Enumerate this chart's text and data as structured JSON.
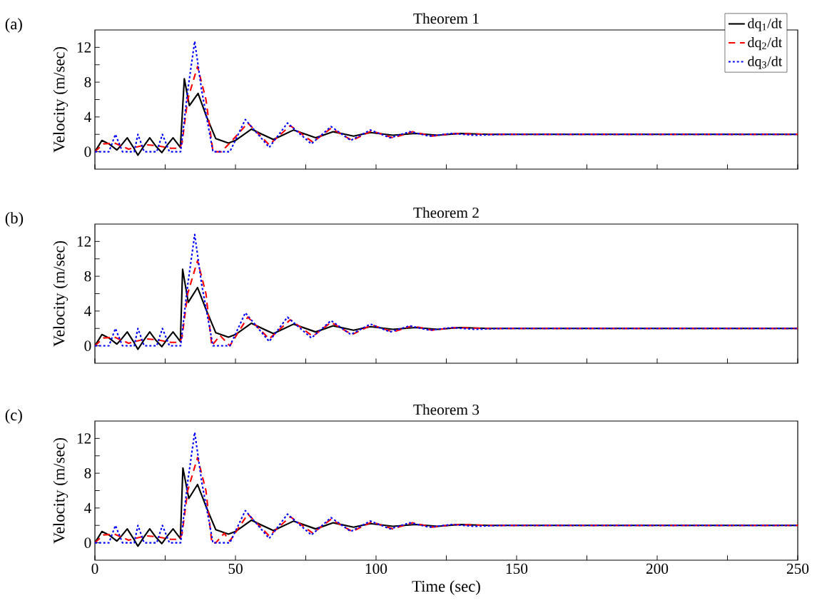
{
  "chart_data": [
    {
      "type": "line",
      "title": "Theorem 1",
      "ylabel": "Velocity (m/sec)",
      "annotations": [
        "(a)"
      ],
      "xlim": [
        0,
        250
      ],
      "ylim": [
        -2,
        14
      ],
      "xticks": [
        0,
        {
          "value": 25,
          "label": null
        },
        50,
        {
          "value": 75,
          "label": null
        },
        100,
        {
          "value": 125,
          "label": null
        },
        150,
        {
          "value": 175,
          "label": null
        },
        200,
        {
          "value": 225,
          "label": null
        },
        250
      ],
      "yticks": [
        0,
        {
          "value": 2,
          "label": null
        },
        4,
        {
          "value": 6,
          "label": null
        },
        8,
        {
          "value": 10,
          "label": null
        },
        12
      ],
      "tick_labels": "y",
      "legend": "top right",
      "grid": false,
      "series": [
        {
          "name": "dq$_{1}$/dt",
          "color": "#000000",
          "line_style": "solid",
          "x": [
            0,
            2.5,
            5,
            7.8,
            9.5,
            11.5,
            13.5,
            15.3,
            17.5,
            19.5,
            21.8,
            23.8,
            25.8,
            27.8,
            30.4,
            31.8,
            33.6,
            36.7,
            39.5,
            43,
            47.5,
            50,
            55.7,
            59.5,
            63.5,
            70.7,
            78.5,
            84.8,
            92,
            98,
            106,
            114,
            122,
            130,
            140,
            160,
            200,
            250
          ],
          "values": [
            0,
            1.3,
            0.9,
            0.2,
            0.8,
            1.6,
            0.6,
            -0.4,
            0.7,
            1.6,
            0.6,
            -0.1,
            0.8,
            1.6,
            0.5,
            8.4,
            5.3,
            6.7,
            4.2,
            1.5,
            1.0,
            1.3,
            2.6,
            2.0,
            1.4,
            2.5,
            1.6,
            2.3,
            1.8,
            2.2,
            1.9,
            2.1,
            1.9,
            2.1,
            2.0,
            2.0,
            2.0,
            2.0
          ]
        },
        {
          "name": "dq$_{2}$/dt",
          "color": "#ff0000",
          "line_style": "dashed",
          "x": [
            0,
            3,
            7,
            12,
            18,
            22,
            27,
            30,
            31,
            33,
            36.5,
            39.5,
            42,
            45,
            48,
            54.4,
            62,
            69.5,
            77.5,
            84,
            91.5,
            98.5,
            106,
            113,
            120,
            128,
            140,
            200,
            250
          ],
          "values": [
            0,
            0.9,
            1.0,
            0.3,
            0.8,
            0.7,
            0.4,
            0.4,
            1.0,
            6,
            9.8,
            6,
            0,
            0,
            1.0,
            3.3,
            0.8,
            3.0,
            1.1,
            2.7,
            1.3,
            2.4,
            1.6,
            2.3,
            1.8,
            2.1,
            2.0,
            2.0,
            2.0
          ]
        },
        {
          "name": "dq$_{3}$/dt",
          "color": "#0000ff",
          "line_style": "dotted",
          "x": [
            0,
            5,
            7.3,
            9.8,
            14,
            15.3,
            17.5,
            22,
            24,
            26.5,
            30.5,
            33,
            35.5,
            38,
            42,
            48,
            49.5,
            53.5,
            62,
            68.5,
            77,
            84,
            91,
            98,
            105,
            112,
            119,
            127,
            135,
            145,
            200,
            250
          ],
          "values": [
            0,
            0,
            2.0,
            0,
            0,
            2.0,
            0,
            0,
            2.0,
            0,
            0,
            7,
            12.7,
            7,
            0,
            0,
            1.0,
            3.7,
            0.5,
            3.3,
            0.9,
            2.9,
            1.3,
            2.5,
            1.6,
            2.3,
            1.8,
            2.1,
            1.9,
            2.0,
            2.0,
            2.0
          ]
        }
      ]
    },
    {
      "type": "line",
      "title": "Theorem 2",
      "ylabel": "Velocity (m/sec)",
      "annotations": [
        "(b)"
      ],
      "xlim": [
        0,
        250
      ],
      "ylim": [
        -2,
        14
      ],
      "xticks": [
        0,
        {
          "value": 25,
          "label": null
        },
        50,
        {
          "value": 75,
          "label": null
        },
        100,
        {
          "value": 125,
          "label": null
        },
        150,
        {
          "value": 175,
          "label": null
        },
        200,
        {
          "value": 225,
          "label": null
        },
        250
      ],
      "yticks": [
        0,
        {
          "value": 2,
          "label": null
        },
        4,
        {
          "value": 6,
          "label": null
        },
        8,
        {
          "value": 10,
          "label": null
        },
        12
      ],
      "tick_labels": "y",
      "grid": false,
      "series": [
        {
          "color": "#000000",
          "line_style": "solid",
          "x": [
            0,
            2.5,
            5,
            7.8,
            9.5,
            11.5,
            13.5,
            15.3,
            17.5,
            19.5,
            21.8,
            23.8,
            25.8,
            27.8,
            30.4,
            31.2,
            33.2,
            36.5,
            39.5,
            43,
            47.5,
            50,
            55.7,
            59.5,
            63.5,
            70.7,
            78.5,
            84.8,
            92,
            98,
            106,
            114,
            122,
            130,
            140,
            160,
            200,
            250
          ],
          "values": [
            0,
            1.3,
            0.9,
            0.2,
            0.8,
            1.6,
            0.6,
            -0.4,
            0.7,
            1.6,
            0.6,
            -0.1,
            0.8,
            1.6,
            0.5,
            8.8,
            5.0,
            6.7,
            4.2,
            1.5,
            1.0,
            1.3,
            2.6,
            2.0,
            1.4,
            2.5,
            1.6,
            2.3,
            1.8,
            2.2,
            1.9,
            2.1,
            1.9,
            2.1,
            2.0,
            2.0,
            2.0,
            2.0
          ]
        },
        {
          "color": "#ff0000",
          "line_style": "dashed",
          "x": [
            0,
            3,
            7,
            12,
            18,
            22,
            27,
            30,
            31,
            33,
            36.5,
            39.5,
            41.6,
            44.5,
            48,
            54.4,
            62,
            69.5,
            77.5,
            84,
            91.5,
            98.5,
            106,
            113,
            120,
            128,
            140,
            200,
            250
          ],
          "values": [
            0,
            0.9,
            1.0,
            0.3,
            0.8,
            0.7,
            0.4,
            0.4,
            1.0,
            6,
            9.8,
            6,
            0,
            1.2,
            0,
            3.3,
            0.8,
            3.0,
            1.1,
            2.7,
            1.3,
            2.4,
            1.6,
            2.3,
            1.8,
            2.1,
            2.0,
            2.0,
            2.0
          ]
        },
        {
          "color": "#0000ff",
          "line_style": "dotted",
          "x": [
            0,
            5,
            7.3,
            9.8,
            14,
            15.3,
            17.5,
            22,
            24,
            26.5,
            30.5,
            33,
            35.5,
            38,
            42,
            48,
            49.5,
            53.5,
            62,
            68.5,
            77,
            84,
            91,
            98,
            105,
            112,
            119,
            127,
            135,
            145,
            200,
            250
          ],
          "values": [
            0,
            0,
            2.0,
            0,
            0,
            2.0,
            0,
            0,
            2.0,
            0,
            0,
            7,
            12.8,
            7,
            0,
            0,
            1.0,
            3.8,
            0.5,
            3.3,
            0.9,
            2.9,
            1.3,
            2.5,
            1.6,
            2.3,
            1.8,
            2.1,
            1.9,
            2.0,
            2.0,
            2.0
          ]
        }
      ]
    },
    {
      "type": "line",
      "title": "Theorem 3",
      "ylabel": "Velocity (m/sec)",
      "xlabel": "Time (sec)",
      "annotations": [
        "(c)"
      ],
      "xlim": [
        0,
        250
      ],
      "ylim": [
        -2,
        14
      ],
      "xticks": [
        0,
        {
          "value": 25,
          "label": null
        },
        50,
        {
          "value": 75,
          "label": null
        },
        100,
        {
          "value": 125,
          "label": null
        },
        150,
        {
          "value": 175,
          "label": null
        },
        200,
        {
          "value": 225,
          "label": null
        },
        250
      ],
      "yticks": [
        0,
        {
          "value": 2,
          "label": null
        },
        4,
        {
          "value": 6,
          "label": null
        },
        8,
        {
          "value": 10,
          "label": null
        },
        12
      ],
      "grid": false,
      "series": [
        {
          "color": "#000000",
          "line_style": "solid",
          "x": [
            0,
            2.5,
            5,
            7.8,
            9.5,
            11.5,
            13.5,
            15.3,
            17.5,
            19.5,
            21.8,
            23.8,
            25.8,
            27.8,
            30.4,
            31.3,
            33.4,
            36.5,
            39.5,
            43,
            47.5,
            50,
            55.7,
            59.5,
            63.5,
            70.7,
            78.5,
            84.8,
            92,
            98,
            106,
            114,
            122,
            130,
            140,
            160,
            200,
            250
          ],
          "values": [
            0,
            1.3,
            0.9,
            0.2,
            0.8,
            1.6,
            0.6,
            -0.4,
            0.7,
            1.6,
            0.6,
            -0.1,
            0.8,
            1.6,
            0.5,
            8.6,
            5.1,
            6.7,
            4.2,
            1.5,
            1.0,
            1.3,
            2.6,
            2.0,
            1.4,
            2.5,
            1.6,
            2.3,
            1.8,
            2.2,
            1.9,
            2.1,
            1.9,
            2.1,
            2.0,
            2.0,
            2.0,
            2.0
          ]
        },
        {
          "color": "#ff0000",
          "line_style": "dashed",
          "x": [
            0,
            3,
            7,
            12,
            18,
            22,
            27,
            30,
            31,
            33,
            36.5,
            39.5,
            41.6,
            43,
            46,
            48,
            54.4,
            62,
            69.5,
            77.5,
            84,
            91.5,
            98.5,
            106,
            113,
            120,
            128,
            140,
            200,
            250
          ],
          "values": [
            0,
            0.9,
            1.0,
            0.3,
            0.8,
            0.7,
            0.4,
            0.4,
            1.0,
            6,
            9.8,
            6,
            0,
            0,
            1.1,
            0.2,
            3.3,
            0.8,
            3.0,
            1.1,
            2.7,
            1.3,
            2.4,
            1.6,
            2.3,
            1.8,
            2.1,
            2.0,
            2.0,
            2.0
          ]
        },
        {
          "color": "#0000ff",
          "line_style": "dotted",
          "x": [
            0,
            5,
            7.3,
            9.8,
            14,
            15.3,
            17.5,
            22,
            24,
            26.5,
            30.5,
            33,
            35.5,
            38,
            42,
            48,
            49.5,
            53.5,
            62,
            68.5,
            77,
            84,
            91,
            98,
            105,
            112,
            119,
            127,
            135,
            145,
            200,
            250
          ],
          "values": [
            0,
            0,
            2.0,
            0,
            0,
            2.0,
            0,
            0,
            2.0,
            0,
            0,
            7,
            12.7,
            7,
            0,
            0,
            1.0,
            3.7,
            0.5,
            3.3,
            0.9,
            2.9,
            1.3,
            2.5,
            1.6,
            2.3,
            1.8,
            2.1,
            1.9,
            2.0,
            2.0,
            2.0
          ]
        }
      ]
    }
  ]
}
